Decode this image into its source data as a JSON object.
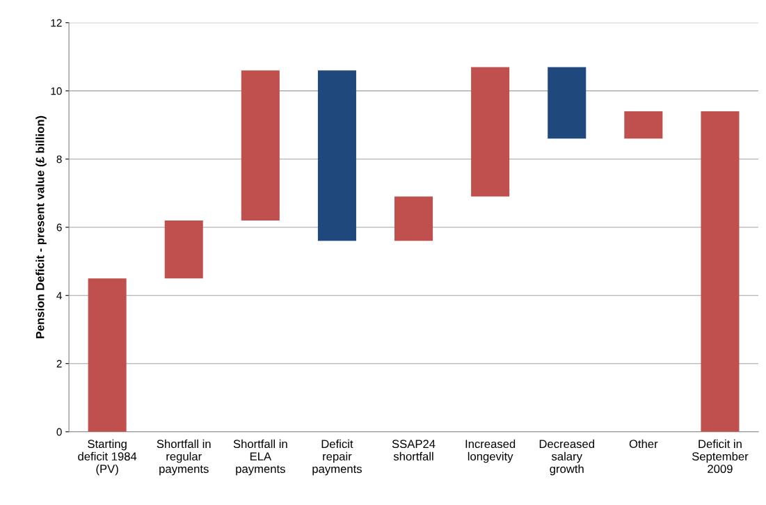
{
  "chart_data": {
    "type": "bar",
    "ylabel": "Pension Deficit - present value (£ billion)",
    "categories": [
      "Starting\ndeficit 1984\n(PV)",
      "Shortfall in\nregular\npayments",
      "Shortfall in\nELA\npayments",
      "Deficit\nrepair\npayments",
      "SSAP24\nshortfall",
      "Increased\nlongevity",
      "Decreased\nsalary\ngrowth",
      "Other",
      "Deficit in\nSeptember\n2009"
    ],
    "base": [
      0,
      4.5,
      6.2,
      10.6,
      5.6,
      6.9,
      10.7,
      8.6,
      0
    ],
    "values": [
      4.5,
      1.7,
      4.4,
      -5.0,
      1.3,
      3.8,
      -2.1,
      0.8,
      9.4
    ],
    "colors": [
      "#c0504d",
      "#c0504d",
      "#c0504d",
      "#1f497d",
      "#c0504d",
      "#c0504d",
      "#1f497d",
      "#c0504d",
      "#c0504d"
    ],
    "ylim": [
      0,
      12
    ],
    "yticks": [
      0,
      2,
      4,
      6,
      8,
      10,
      12
    ],
    "grid": "y",
    "legend": false
  }
}
